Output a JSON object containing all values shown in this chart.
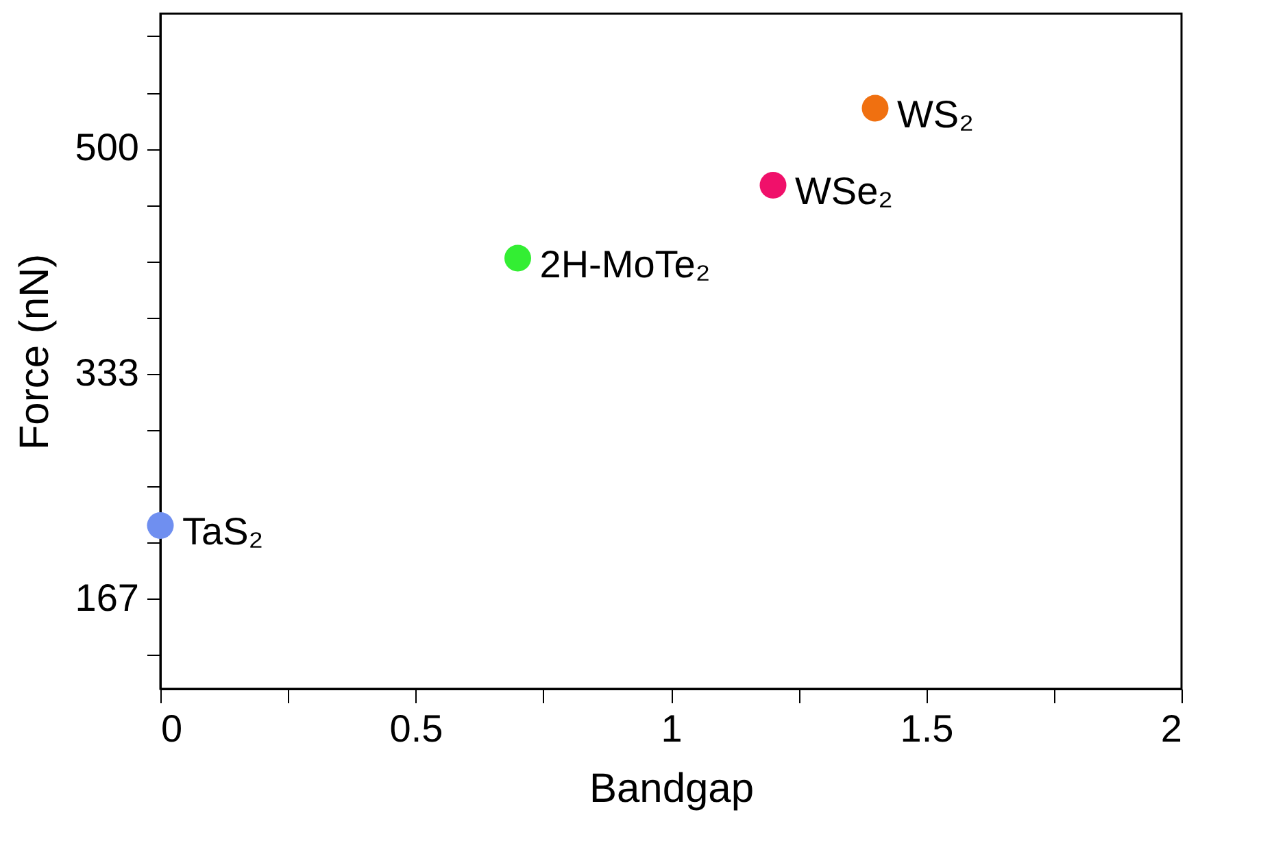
{
  "chart_data": {
    "type": "scatter",
    "xlabel": "Bandgap",
    "ylabel": "Force (nN)",
    "xlim": [
      0,
      2
    ],
    "ylim": [
      100,
      600
    ],
    "xticks": [
      0,
      {
        "value": 0.25,
        "label": null
      },
      {
        "value": 0.5,
        "label": "0.5"
      },
      {
        "value": 0.75,
        "label": null
      },
      1,
      {
        "value": 1.25,
        "label": null
      },
      {
        "value": 1.5,
        "label": "1.5"
      },
      {
        "value": 1.75,
        "label": null
      },
      2
    ],
    "yticks": [
      {
        "value": 125,
        "label": null
      },
      {
        "value": 166.67,
        "label": "167"
      },
      {
        "value": 208.33,
        "label": null
      },
      {
        "value": 250,
        "label": null
      },
      {
        "value": 291.67,
        "label": null
      },
      {
        "value": 333.33,
        "label": "333"
      },
      {
        "value": 375,
        "label": null
      },
      {
        "value": 416.67,
        "label": null
      },
      {
        "value": 458.33,
        "label": null
      },
      500,
      {
        "value": 541.67,
        "label": null
      },
      {
        "value": 583.33,
        "label": null
      }
    ],
    "marker": "circle",
    "grid": false,
    "legend": false,
    "series": [
      {
        "name": "TaS₂",
        "color": "#6f8ff0",
        "x": [
          0
        ],
        "values": [
          221
        ]
      },
      {
        "name": "2H-MoTe₂",
        "color": "#33ee33",
        "x": [
          0.7
        ],
        "values": [
          419
        ]
      },
      {
        "name": "WSe₂",
        "color": "#f0106a",
        "x": [
          1.2
        ],
        "values": [
          473
        ]
      },
      {
        "name": "WS₂",
        "color": "#f07010",
        "x": [
          1.4
        ],
        "values": [
          530
        ]
      }
    ]
  }
}
